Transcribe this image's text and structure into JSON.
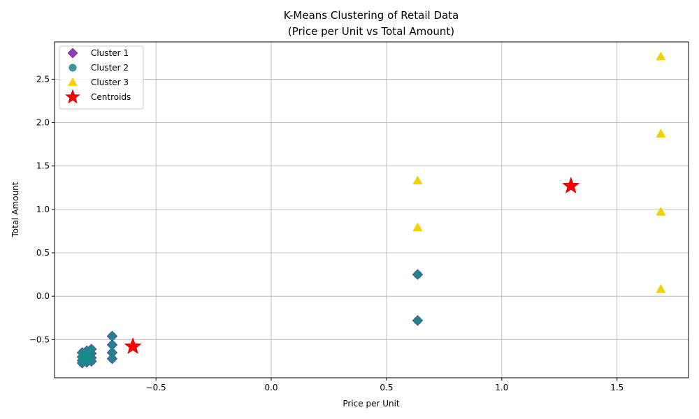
{
  "chart_data": {
    "type": "scatter",
    "title_line1": "K-Means Clustering of Retail Data",
    "title_line2": "(Price per Unit vs Total Amount)",
    "xlabel": "Price per Unit",
    "ylabel": "Total Amount",
    "xlim": [
      -0.94,
      1.81
    ],
    "ylim": [
      -0.94,
      2.93
    ],
    "xticks": [
      -0.5,
      0.0,
      0.5,
      1.0,
      1.5
    ],
    "xtick_labels": [
      "−0.5",
      "0.0",
      "0.5",
      "1.0",
      "1.5"
    ],
    "yticks": [
      -0.5,
      0.0,
      0.5,
      1.0,
      1.5,
      2.0,
      2.5
    ],
    "ytick_labels": [
      "−0.5",
      "0.0",
      "0.5",
      "1.0",
      "1.5",
      "2.0",
      "2.5"
    ],
    "grid": true,
    "legend_position": "top-left",
    "series": [
      {
        "name": "Cluster 1",
        "marker": "diamond",
        "color": "#7B1FA2",
        "points": [
          [
            -0.82,
            -0.65
          ],
          [
            -0.82,
            -0.7
          ],
          [
            -0.82,
            -0.74
          ],
          [
            -0.82,
            -0.77
          ],
          [
            -0.8,
            -0.63
          ],
          [
            -0.8,
            -0.68
          ],
          [
            -0.8,
            -0.72
          ],
          [
            -0.8,
            -0.76
          ],
          [
            -0.78,
            -0.61
          ],
          [
            -0.78,
            -0.66
          ],
          [
            -0.78,
            -0.71
          ],
          [
            -0.78,
            -0.75
          ],
          [
            -0.69,
            -0.46
          ],
          [
            -0.69,
            -0.56
          ],
          [
            -0.69,
            -0.65
          ],
          [
            -0.69,
            -0.72
          ],
          [
            0.635,
            0.25
          ],
          [
            0.635,
            -0.28
          ]
        ]
      },
      {
        "name": "Cluster 2",
        "marker": "circle",
        "color": "#1A8A8A",
        "points": [
          [
            -0.82,
            -0.65
          ],
          [
            -0.82,
            -0.7
          ],
          [
            -0.82,
            -0.74
          ],
          [
            -0.82,
            -0.77
          ],
          [
            -0.8,
            -0.63
          ],
          [
            -0.8,
            -0.68
          ],
          [
            -0.8,
            -0.72
          ],
          [
            -0.8,
            -0.76
          ],
          [
            -0.78,
            -0.61
          ],
          [
            -0.78,
            -0.66
          ],
          [
            -0.78,
            -0.71
          ],
          [
            -0.78,
            -0.75
          ],
          [
            -0.69,
            -0.46
          ],
          [
            -0.69,
            -0.56
          ],
          [
            -0.69,
            -0.65
          ],
          [
            -0.69,
            -0.72
          ],
          [
            0.635,
            0.25
          ],
          [
            0.635,
            -0.28
          ]
        ]
      },
      {
        "name": "Cluster 3",
        "marker": "triangle",
        "color": "#F5D000",
        "points": [
          [
            0.635,
            1.33
          ],
          [
            0.635,
            0.79
          ],
          [
            1.69,
            2.76
          ],
          [
            1.69,
            1.87
          ],
          [
            1.69,
            0.97
          ],
          [
            1.69,
            0.08
          ]
        ]
      },
      {
        "name": "Centroids",
        "marker": "star",
        "color": "#FF0000",
        "points": [
          [
            -0.6,
            -0.58
          ],
          [
            1.3,
            1.27
          ]
        ]
      }
    ]
  }
}
